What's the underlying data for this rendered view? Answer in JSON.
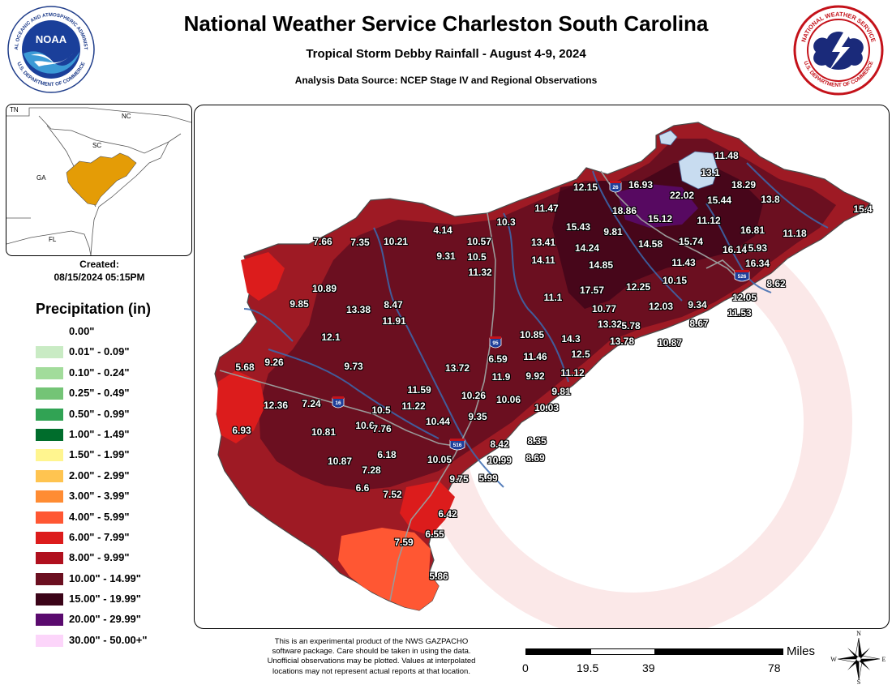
{
  "header": {
    "title": "National Weather Service Charleston South Carolina",
    "subtitle": "Tropical Storm Debby Rainfall - August 4-9, 2024",
    "source": "Analysis Data Source: NCEP Stage IV and Regional Observations"
  },
  "noaa_logo": {
    "ring_text": "NATIONAL OCEANIC AND ATMOSPHERIC ADMINISTRATION",
    "bottom_text": "U.S. DEPARTMENT OF COMMERCE",
    "center_text": "NOAA"
  },
  "nws_logo": {
    "ring_text": "NATIONAL WEATHER SERVICE",
    "bottom_text": "U.S. DEPARTMENT OF COMMERCE"
  },
  "inset": {
    "states": [
      "TN",
      "NC",
      "SC",
      "GA",
      "FL"
    ],
    "highlight_color": "#e49c06"
  },
  "created": {
    "label": "Created:",
    "datetime": "08/15/2024 05:15PM"
  },
  "legend": {
    "title": "Precipitation (in)",
    "items": [
      {
        "label": "0.00\"",
        "color": "#ffffff"
      },
      {
        "label": "0.01\" - 0.09\"",
        "color": "#c9ebc4"
      },
      {
        "label": "0.10\" - 0.24\"",
        "color": "#a2dc9b"
      },
      {
        "label": "0.25\" - 0.49\"",
        "color": "#74c476"
      },
      {
        "label": "0.50\" - 0.99\"",
        "color": "#31a354"
      },
      {
        "label": "1.00\" - 1.49\"",
        "color": "#006d2c"
      },
      {
        "label": "1.50\" - 1.99\"",
        "color": "#fff58f"
      },
      {
        "label": "2.00\" - 2.99\"",
        "color": "#ffc450"
      },
      {
        "label": "3.00\" - 3.99\"",
        "color": "#ff8c33"
      },
      {
        "label": "4.00\" - 5.99\"",
        "color": "#ff5733"
      },
      {
        "label": "6.00\" - 7.99\"",
        "color": "#dc1c1c"
      },
      {
        "label": "8.00\" - 9.99\"",
        "color": "#b0101e"
      },
      {
        "label": "10.00\" - 14.99\"",
        "color": "#6b0f20"
      },
      {
        "label": "15.00\" - 19.99\"",
        "color": "#3b0418"
      },
      {
        "label": "20.00\" - 29.99\"",
        "color": "#5a0a6e"
      },
      {
        "label": "30.00\" - 50.00+\"",
        "color": "#fcd5fa"
      }
    ]
  },
  "interstates": [
    "26",
    "95",
    "16",
    "516",
    "526"
  ],
  "observations": [
    "11.48",
    "13.1",
    "16.93",
    "12.15",
    "22.02",
    "18.29",
    "15.44",
    "13.8",
    "15.4",
    "18.86",
    "11.47",
    "10.3",
    "4.14",
    "7.66",
    "7.35",
    "10.21",
    "10.57",
    "13.41",
    "15.43",
    "9.81",
    "15.12",
    "11.12",
    "16.81",
    "11.18",
    "15.93",
    "16.34",
    "14.24",
    "14.58",
    "15.74",
    "16.14",
    "9.31",
    "10.5",
    "11.32",
    "14.11",
    "14.85",
    "11.43",
    "10.15",
    "12.05",
    "8.62",
    "10.89",
    "9.85",
    "13.38",
    "8.47",
    "11.1",
    "17.57",
    "12.25",
    "10.77",
    "12.03",
    "9.34",
    "11.53",
    "11.91",
    "13.32",
    "5.78",
    "8.67",
    "12.1",
    "10.85",
    "14.3",
    "13.78",
    "10.87",
    "6.59",
    "11.46",
    "12.5",
    "5.68",
    "9.26",
    "9.73",
    "13.72",
    "11.9",
    "9.92",
    "11.12",
    "11.59",
    "9.81",
    "10.26",
    "10.06",
    "12.36",
    "7.24",
    "10.5",
    "11.22",
    "10.03",
    "9.35",
    "6.93",
    "10.6",
    "7.76",
    "10.44",
    "10.81",
    "8.42",
    "8.35",
    "6.18",
    "10.87",
    "7.28",
    "10.05",
    "10.99",
    "8.69",
    "9.75",
    "5.99",
    "6.6",
    "7.52",
    "6.42",
    "6.55",
    "7.59",
    "5.86"
  ],
  "disclaimer": [
    "This is an experimental product of the NWS GAZPACHO",
    "software package. Care should be taken in using the data.",
    "Unofficial observations may be plotted. Values at interpolated",
    "locations may not represent actual reports at that location."
  ],
  "scale": {
    "unit": "Miles",
    "ticks": [
      "0",
      "19.5",
      "39",
      "78"
    ]
  },
  "compass": {
    "n": "N",
    "s": "S",
    "e": "E",
    "w": "W"
  }
}
